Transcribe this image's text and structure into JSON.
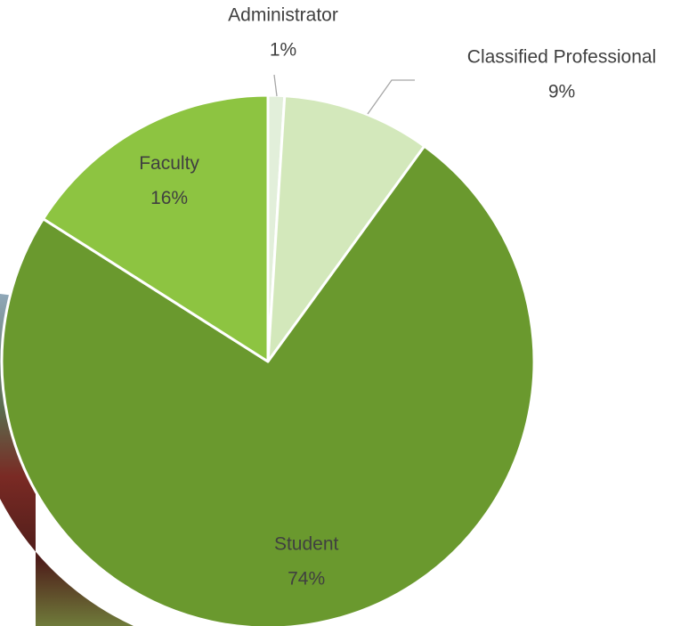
{
  "chart_data": {
    "type": "pie",
    "categories": [
      "Administrator",
      "Classified Professional",
      "Student",
      "Faculty"
    ],
    "values": [
      1,
      9,
      74,
      16
    ],
    "value_labels": [
      "1%",
      "9%",
      "74%",
      "16%"
    ],
    "colors": [
      "#e2efda",
      "#d3e8bb",
      "#6a992e",
      "#8dc441"
    ]
  }
}
